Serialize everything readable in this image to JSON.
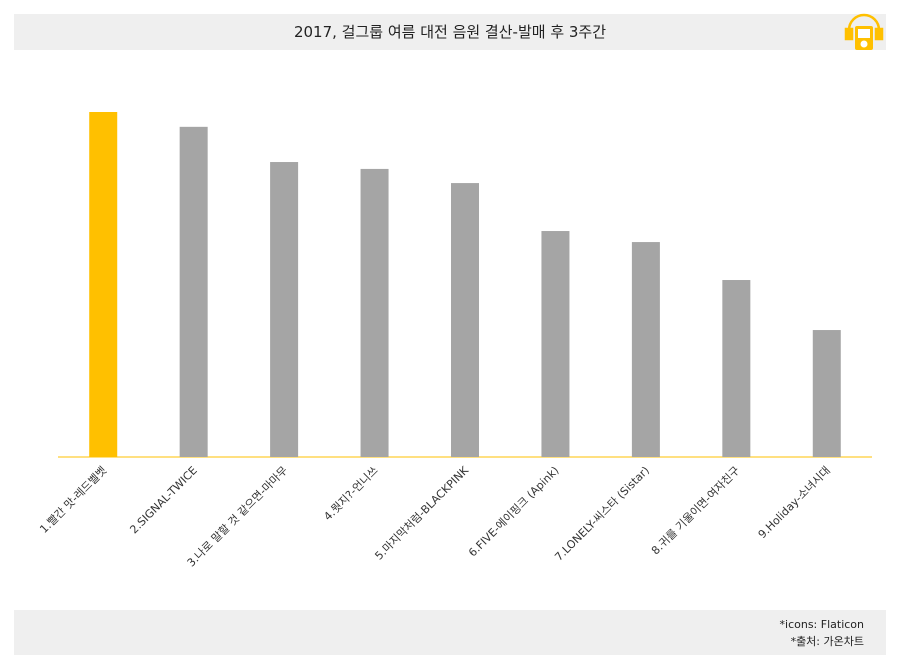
{
  "chart_data": {
    "type": "bar",
    "title": "2017, 걸그룹 여름 대전 음원 결산-발매 후 3주간",
    "categories": [
      "1.빨간 맛-레드벨벳",
      "2.SIGNAL-TWICE",
      "3.나로 말할 것 같으면-마마무",
      "4.뭣지?-언니쓰",
      "5.마지막처럼-BLACKPINK",
      "6.FIVE-에이핑크 (Apink)",
      "7.LONELY-씨스타 (Sistar)",
      "8.귀를 기울이면-여자친구",
      "9.Holiday-소녀시대"
    ],
    "values": [
      100,
      95.7,
      85.5,
      83.5,
      79.4,
      65.5,
      62.3,
      51.3,
      36.8
    ],
    "colors": [
      "#FFC000",
      "#A5A5A5",
      "#A5A5A5",
      "#A5A5A5",
      "#A5A5A5",
      "#A5A5A5",
      "#A5A5A5",
      "#A5A5A5",
      "#A5A5A5"
    ],
    "notes": [
      "*icons: Flaticon",
      "*출처: 가온차트"
    ]
  }
}
